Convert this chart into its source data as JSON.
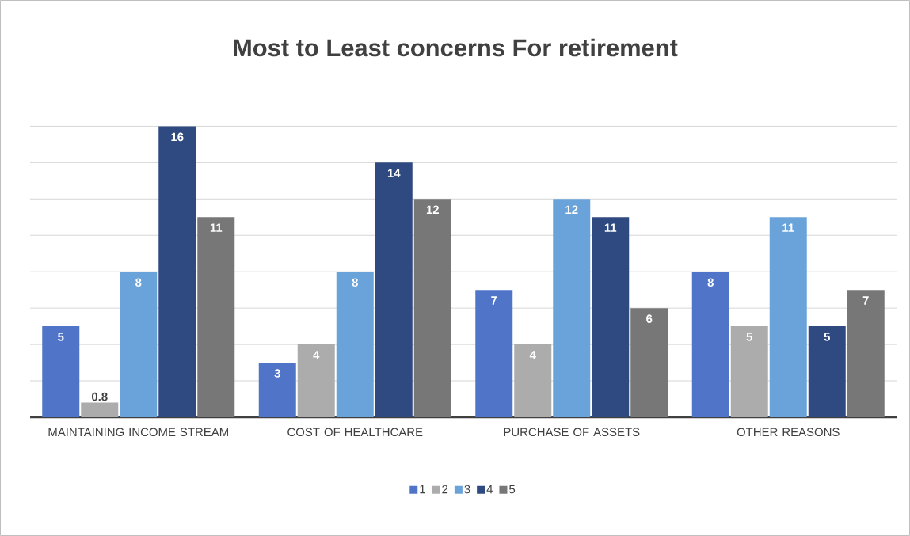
{
  "chart_data": {
    "type": "bar",
    "title": "Most to Least concerns For retirement",
    "categories": [
      "MAINTAINING INCOME STREAM",
      "COST OF HEALTHCARE",
      "PURCHASE OF ASSETS",
      "OTHER REASONS"
    ],
    "series": [
      {
        "name": "1",
        "color": "#4f74c8",
        "values": [
          5,
          3,
          7,
          8
        ]
      },
      {
        "name": "2",
        "color": "#acacac",
        "values": [
          0.8,
          4,
          4,
          5
        ]
      },
      {
        "name": "3",
        "color": "#6aa3da",
        "values": [
          8,
          8,
          12,
          11
        ]
      },
      {
        "name": "4",
        "color": "#2f4a80",
        "values": [
          16,
          14,
          11,
          5
        ]
      },
      {
        "name": "5",
        "color": "#777777",
        "values": [
          11,
          12,
          6,
          7
        ]
      }
    ],
    "tick_labels": "x",
    "grid": "y",
    "legend": "bottom",
    "data_labels": true
  }
}
